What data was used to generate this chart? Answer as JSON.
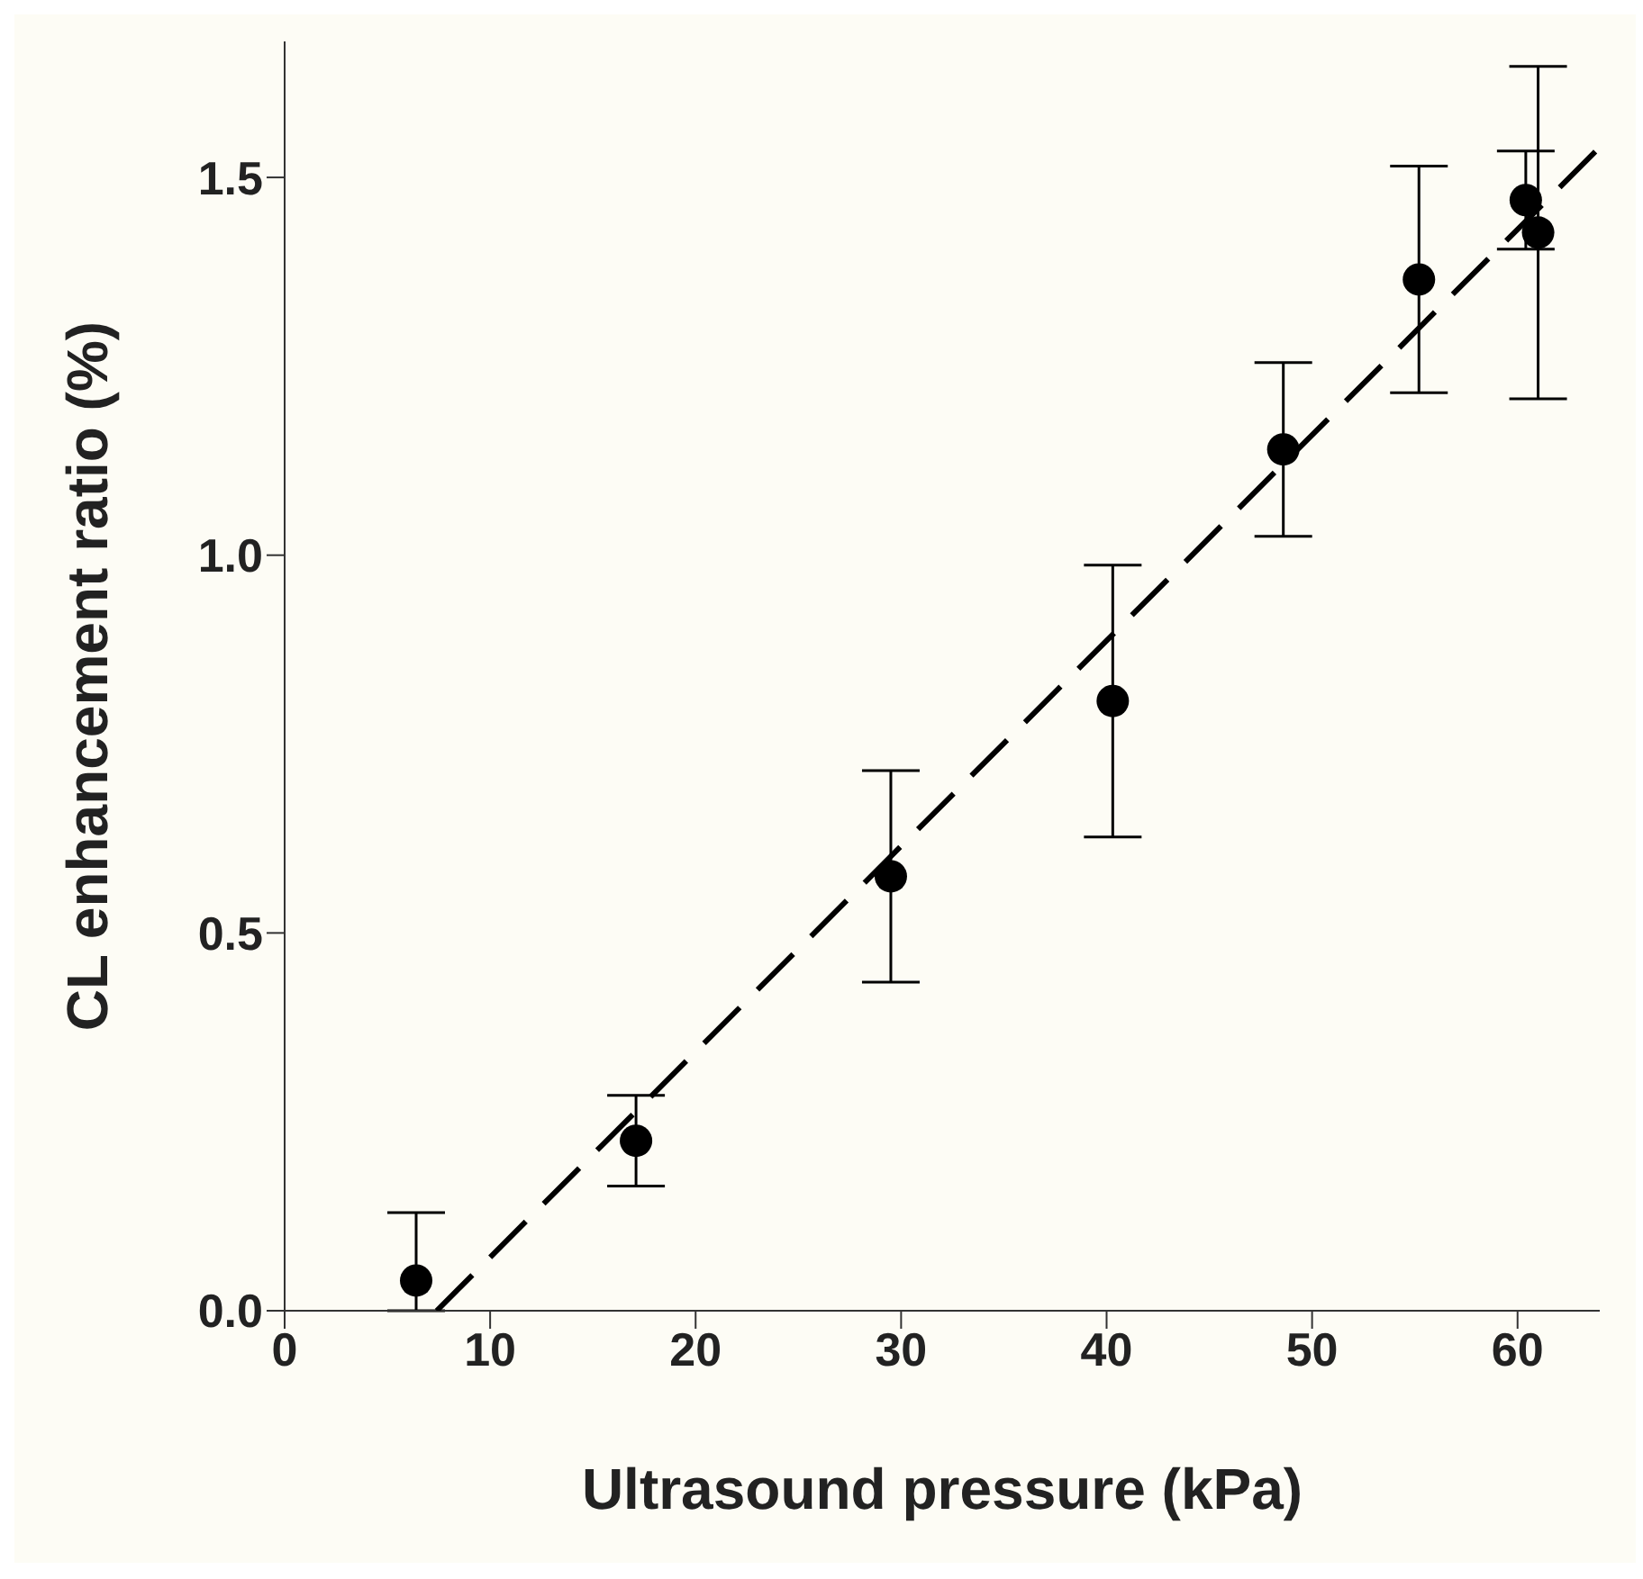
{
  "chart_data": {
    "type": "scatter",
    "xlabel": "Ultrasound pressure (kPa)",
    "ylabel": "CL enhancement ratio (%)",
    "xlim": [
      0,
      64
    ],
    "xticks": [
      0,
      10,
      20,
      30,
      40,
      50,
      60
    ],
    "ylim": [
      0,
      1.68
    ],
    "yticks": [
      {
        "value": 0,
        "label": "0.0"
      },
      {
        "value": 0.5,
        "label": "0.5"
      },
      {
        "value": 1,
        "label": "1.0"
      },
      {
        "value": 1.5,
        "label": "1.5"
      }
    ],
    "marker": "circle",
    "series": [
      {
        "color": "#000000",
        "x": [
          6.4,
          17.1,
          29.5,
          40.3,
          48.6,
          55.2,
          60.4,
          61.0
        ],
        "values": [
          0.04,
          0.225,
          0.575,
          0.807,
          1.14,
          1.365,
          1.47,
          1.427
        ],
        "errors": [
          [
            0,
            0.13
          ],
          0.06,
          0.14,
          0.18,
          0.115,
          0.15,
          0.065,
          0.22
        ]
      },
      {
        "type": "line",
        "color": "#000000",
        "x": [
          7.4,
          64
        ],
        "values": [
          0,
          1.54
        ],
        "line_style": "dashed",
        "marker": "none"
      }
    ]
  }
}
